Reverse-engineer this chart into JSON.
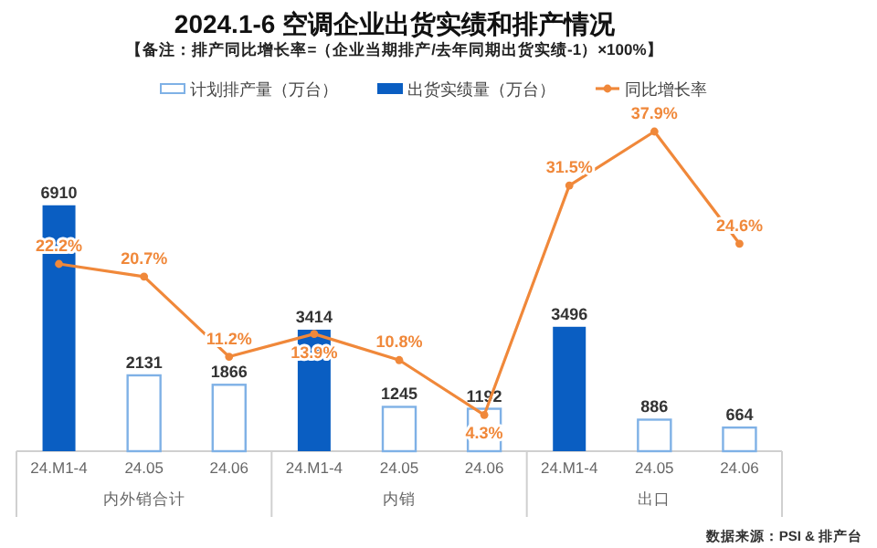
{
  "chart_data": {
    "type": "bar",
    "title": "2024.1-6  空调企业出货实绩和排产情况",
    "subtitle": "【备注：排产同比增长率=（企业当期排产/去年同期出货实绩-1）×100%】",
    "categories": [
      "24.M1-4",
      "24.05",
      "24.06",
      "24.M1-4",
      "24.05",
      "24.06",
      "24.M1-4",
      "24.05",
      "24.06"
    ],
    "series": [
      {
        "name": "计划排产量（万台）",
        "color": "#7fb1e6",
        "values": [
          null,
          2131,
          1866,
          null,
          1245,
          1192,
          null,
          886,
          664
        ]
      },
      {
        "name": "出货实绩量（万台）",
        "color": "#0a5ec2",
        "values": [
          6910,
          null,
          null,
          3414,
          null,
          null,
          3496,
          null,
          null
        ]
      },
      {
        "name": "同比增长率",
        "type": "line",
        "axis": "y2",
        "color": "#f0883a",
        "values": [
          22.2,
          20.7,
          11.2,
          13.9,
          10.8,
          4.3,
          31.5,
          37.9,
          24.6
        ],
        "value_labels": [
          "22.2%",
          "20.7%",
          "11.2%",
          "13.9%",
          "10.8%",
          "4.3%",
          "31.5%",
          "37.9%",
          "24.6%"
        ]
      }
    ],
    "data_labels": true,
    "legend": "top",
    "marker": "circle",
    "annotations": [
      "内外销合计",
      "内销",
      "出口",
      "数据来源：PSI & 排产台"
    ]
  }
}
